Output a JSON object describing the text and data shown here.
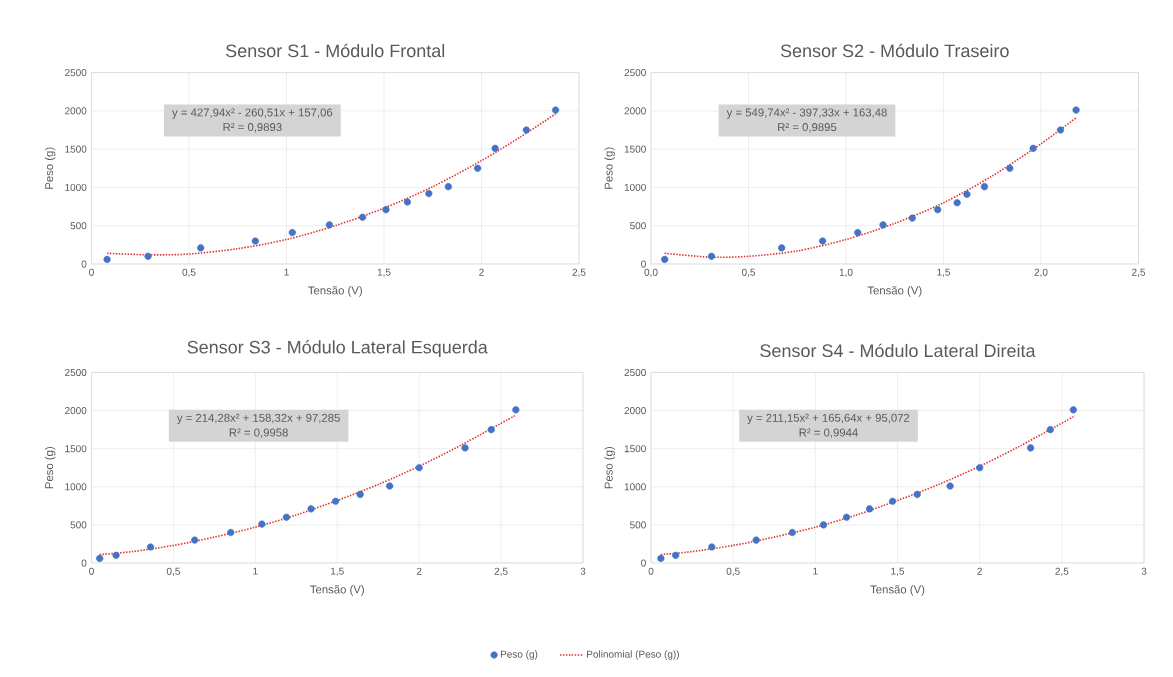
{
  "chart_data": [
    {
      "type": "scatter",
      "title": "Sensor S1 - Módulo Frontal",
      "xlabel": "Tensão (V)",
      "ylabel": "Peso (g)",
      "annotations": [
        "y = 427,94x² - 260,51x + 157,06",
        "R² = 0,9893"
      ],
      "xlim": [
        0,
        2.5
      ],
      "ylim": [
        0,
        2500
      ],
      "xticks": [
        0,
        {
          "value": 0.5,
          "label": "0,5"
        },
        1,
        {
          "value": 1.5,
          "label": "1,5"
        },
        2,
        {
          "value": 2.5,
          "label": "2,5"
        }
      ],
      "yticks": [
        0,
        500,
        1000,
        1500,
        2000,
        2500
      ],
      "grid": true,
      "series": [
        {
          "marker": "circle",
          "color": "#4472c4",
          "x": [
            0.08,
            0.29,
            0.56,
            0.84,
            1.03,
            1.22,
            1.39,
            1.51,
            1.62,
            1.73,
            1.83,
            1.98,
            2.07,
            2.23,
            2.38
          ],
          "values": [
            60,
            100,
            210,
            300,
            410,
            510,
            610,
            710,
            810,
            920,
            1010,
            1250,
            1510,
            1750,
            2010
          ]
        },
        {
          "type": "line",
          "line_style": "dotted",
          "color": "#e03131",
          "x": [
            0.08,
            0.3,
            0.5,
            0.75,
            1,
            1.25,
            1.5,
            1.75,
            2,
            2.2,
            2.38
          ],
          "values": [
            140,
            120,
            130,
            200,
            320,
            500,
            730,
            1010,
            1350,
            1660,
            1960
          ]
        }
      ]
    },
    {
      "type": "scatter",
      "title": "Sensor S2 - Módulo Traseiro",
      "xlabel": "Tensão (V)",
      "ylabel": "Peso (g)",
      "annotations": [
        "y = 549,74x² - 397,33x + 163,48",
        "R² = 0,9895"
      ],
      "xlim": [
        0,
        2.5
      ],
      "ylim": [
        0,
        2500
      ],
      "xticks": [
        {
          "value": 0,
          "label": "0,0"
        },
        {
          "value": 0.5,
          "label": "0,5"
        },
        {
          "value": 1,
          "label": "1,0"
        },
        {
          "value": 1.5,
          "label": "1,5"
        },
        {
          "value": 2,
          "label": "2,0"
        },
        {
          "value": 2.5,
          "label": "2,5"
        }
      ],
      "yticks": [
        0,
        500,
        1000,
        1500,
        2000,
        2500
      ],
      "grid": true,
      "series": [
        {
          "marker": "circle",
          "color": "#4472c4",
          "x": [
            0.07,
            0.31,
            0.67,
            0.88,
            1.06,
            1.19,
            1.34,
            1.47,
            1.57,
            1.62,
            1.71,
            1.84,
            1.96,
            2.1,
            2.18
          ],
          "values": [
            60,
            100,
            210,
            300,
            410,
            510,
            600,
            710,
            800,
            910,
            1010,
            1250,
            1510,
            1750,
            2010
          ]
        },
        {
          "type": "line",
          "line_style": "dotted",
          "color": "#e03131",
          "x": [
            0.07,
            0.3,
            0.5,
            0.75,
            1,
            1.25,
            1.5,
            1.75,
            2,
            2.18
          ],
          "values": [
            140,
            90,
            100,
            170,
            320,
            530,
            800,
            1150,
            1570,
            1910
          ]
        }
      ]
    },
    {
      "type": "scatter",
      "title": "Sensor S3 - Módulo Lateral Esquerda",
      "xlabel": "Tensão (V)",
      "ylabel": "Peso (g)",
      "annotations": [
        "y = 214,28x² + 158,32x + 97,285",
        "R² = 0,9958"
      ],
      "xlim": [
        0,
        3
      ],
      "ylim": [
        0,
        2500
      ],
      "xticks": [
        0,
        {
          "value": 0.5,
          "label": "0,5"
        },
        1,
        {
          "value": 1.5,
          "label": "1,5"
        },
        2,
        {
          "value": 2.5,
          "label": "2,5"
        },
        3
      ],
      "yticks": [
        0,
        500,
        1000,
        1500,
        2000,
        2500
      ],
      "grid": true,
      "series": [
        {
          "marker": "circle",
          "color": "#4472c4",
          "x": [
            0.05,
            0.15,
            0.36,
            0.63,
            0.85,
            1.04,
            1.19,
            1.34,
            1.49,
            1.64,
            1.82,
            2.0,
            2.28,
            2.44,
            2.59
          ],
          "values": [
            60,
            100,
            210,
            300,
            400,
            510,
            600,
            710,
            810,
            900,
            1010,
            1250,
            1510,
            1750,
            2010
          ]
        },
        {
          "type": "line",
          "line_style": "dotted",
          "color": "#e03131",
          "x": [
            0.05,
            0.25,
            0.5,
            0.75,
            1,
            1.25,
            1.5,
            1.75,
            2,
            2.25,
            2.59
          ],
          "values": [
            110,
            150,
            230,
            340,
            470,
            630,
            820,
            1030,
            1270,
            1540,
            1940
          ]
        }
      ]
    },
    {
      "type": "scatter",
      "title": "Sensor S4 - Módulo Lateral Direita",
      "xlabel": "Tensão (V)",
      "ylabel": "Peso (g)",
      "annotations": [
        "y = 211,15x² + 165,64x + 95,072",
        "R² = 0,9944"
      ],
      "xlim": [
        0,
        3
      ],
      "ylim": [
        0,
        2500
      ],
      "xticks": [
        0,
        {
          "value": 0.5,
          "label": "0,5"
        },
        1,
        {
          "value": 1.5,
          "label": "1,5"
        },
        2,
        {
          "value": 2.5,
          "label": "2,5"
        },
        3
      ],
      "yticks": [
        0,
        500,
        1000,
        1500,
        2000,
        2500
      ],
      "grid": true,
      "legend": "bottom",
      "series": [
        {
          "name": "Peso (g)",
          "marker": "circle",
          "color": "#4472c4",
          "x": [
            0.06,
            0.15,
            0.37,
            0.64,
            0.86,
            1.05,
            1.19,
            1.33,
            1.47,
            1.62,
            1.82,
            2.0,
            2.31,
            2.43,
            2.57
          ],
          "values": [
            60,
            100,
            210,
            300,
            400,
            500,
            600,
            710,
            810,
            900,
            1010,
            1250,
            1510,
            1750,
            2010
          ]
        },
        {
          "name": "Polinomial (Peso (g))",
          "type": "line",
          "line_style": "dotted",
          "color": "#e03131",
          "x": [
            0.06,
            0.25,
            0.5,
            0.75,
            1,
            1.25,
            1.5,
            1.75,
            2,
            2.25,
            2.58
          ],
          "values": [
            110,
            150,
            230,
            340,
            470,
            630,
            820,
            1030,
            1270,
            1540,
            1930
          ]
        }
      ]
    }
  ]
}
